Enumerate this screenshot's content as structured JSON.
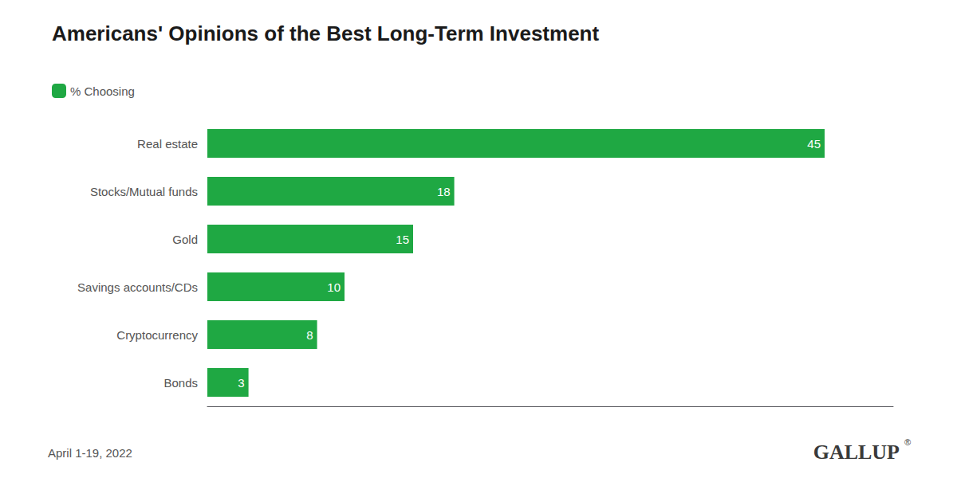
{
  "chart_data": {
    "type": "bar",
    "orientation": "horizontal",
    "title": "Americans' Opinions of the Best Long-Term Investment",
    "categories": [
      "Real estate",
      "Stocks/Mutual funds",
      "Gold",
      "Savings accounts/CDs",
      "Cryptocurrency",
      "Bonds"
    ],
    "series": [
      {
        "name": "% Choosing",
        "color": "#1fa843",
        "values": [
          45,
          18,
          15,
          10,
          8,
          3
        ]
      }
    ],
    "xlim": [
      0,
      50
    ],
    "tick_labels": "y",
    "grid": false,
    "legend": "upper left",
    "data_labels": true,
    "annotations": [
      "April 1-19, 2022",
      "GALLUP",
      "®"
    ]
  }
}
